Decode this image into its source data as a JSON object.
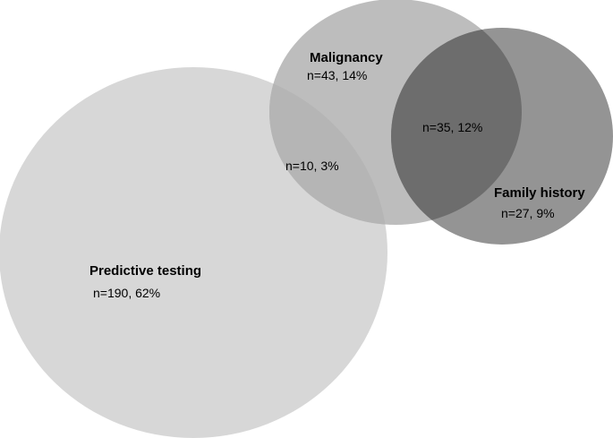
{
  "diagram": {
    "type": "venn",
    "colors": {
      "predictive_testing": "#d7d7d7",
      "malignancy": "#bdbdbd",
      "family_history": "#949494",
      "malignancy_family_overlap": "#6d6d6d",
      "predictive_malignancy_overlap": "#b5b5b5",
      "text": "#000000"
    },
    "sets": {
      "predictive_testing": {
        "name": "Predictive testing",
        "count": "n=190, 62%"
      },
      "malignancy": {
        "name": "Malignancy",
        "count": "n=43, 14%"
      },
      "family_history": {
        "name": "Family history",
        "count": "n=27, 9%"
      }
    },
    "overlaps": {
      "predictive_malignancy": "n=10, 3%",
      "malignancy_family": "n=35, 12%"
    }
  }
}
